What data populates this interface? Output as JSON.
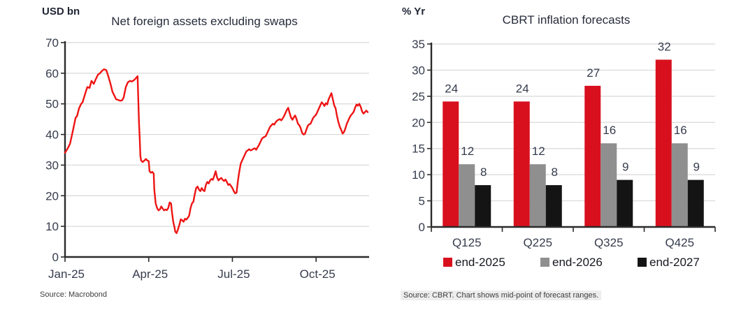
{
  "colors": {
    "line_red": "#ee1414",
    "bar_red": "#d8101e",
    "bar_gray": "#8f8f8f",
    "bar_black": "#141414",
    "grid": "#d8d8d8",
    "axis": "#2b2b2b",
    "text": "#363c4d"
  },
  "chart_data": [
    {
      "type": "line",
      "title": "Net foreign assets excluding swaps",
      "unit_label": "USD bn",
      "source": "Source: Macrobond",
      "ylabel": "",
      "ylim": [
        0,
        70
      ],
      "ytick_step": 10,
      "x_range_months": [
        0,
        10.9
      ],
      "x_ticks": [
        {
          "pos": 0,
          "label": "Jan-25"
        },
        {
          "pos": 3,
          "label": "Apr-25"
        },
        {
          "pos": 6,
          "label": "Jul-25"
        },
        {
          "pos": 9,
          "label": "Oct-25"
        }
      ],
      "grid": true,
      "series_name": "Net foreign assets excluding swaps (USD bn)",
      "points": [
        [
          0,
          34
        ],
        [
          0.1,
          35.5
        ],
        [
          0.18,
          37
        ],
        [
          0.3,
          42
        ],
        [
          0.38,
          45.5
        ],
        [
          0.43,
          46
        ],
        [
          0.5,
          48.5
        ],
        [
          0.58,
          50
        ],
        [
          0.63,
          50.5
        ],
        [
          0.73,
          53.5
        ],
        [
          0.8,
          55.5
        ],
        [
          0.88,
          55.2
        ],
        [
          0.95,
          57.5
        ],
        [
          1.03,
          56.5
        ],
        [
          1.1,
          58
        ],
        [
          1.18,
          59.5
        ],
        [
          1.25,
          60
        ],
        [
          1.33,
          60.8
        ],
        [
          1.4,
          61.3
        ],
        [
          1.48,
          61
        ],
        [
          1.55,
          59
        ],
        [
          1.63,
          56.5
        ],
        [
          1.7,
          54
        ],
        [
          1.78,
          52.5
        ],
        [
          1.83,
          51.5
        ],
        [
          1.9,
          51.3
        ],
        [
          1.98,
          51
        ],
        [
          2.05,
          51.2
        ],
        [
          2.1,
          52
        ],
        [
          2.18,
          55.5
        ],
        [
          2.25,
          57
        ],
        [
          2.33,
          57.5
        ],
        [
          2.4,
          57.3
        ],
        [
          2.48,
          57.8
        ],
        [
          2.55,
          58.5
        ],
        [
          2.6,
          59
        ],
        [
          2.63,
          50
        ],
        [
          2.65,
          44
        ],
        [
          2.68,
          38
        ],
        [
          2.7,
          33
        ],
        [
          2.73,
          31.5
        ],
        [
          2.78,
          31
        ],
        [
          2.85,
          31.5
        ],
        [
          2.9,
          32
        ],
        [
          2.95,
          31.5
        ],
        [
          3,
          31.3
        ],
        [
          3.03,
          28
        ],
        [
          3.08,
          27.5
        ],
        [
          3.13,
          27.8
        ],
        [
          3.18,
          27.2
        ],
        [
          3.2,
          22
        ],
        [
          3.25,
          17.5
        ],
        [
          3.3,
          16
        ],
        [
          3.35,
          15.2
        ],
        [
          3.4,
          15.5
        ],
        [
          3.45,
          16.5
        ],
        [
          3.5,
          15.8
        ],
        [
          3.55,
          15.2
        ],
        [
          3.6,
          15.5
        ],
        [
          3.65,
          15.3
        ],
        [
          3.7,
          16
        ],
        [
          3.75,
          17.8
        ],
        [
          3.8,
          17.5
        ],
        [
          3.83,
          15
        ],
        [
          3.88,
          11.5
        ],
        [
          3.93,
          9.5
        ],
        [
          3.95,
          8.3
        ],
        [
          4,
          7.8
        ],
        [
          4.05,
          9
        ],
        [
          4.1,
          10.5
        ],
        [
          4.15,
          12.3
        ],
        [
          4.2,
          12
        ],
        [
          4.25,
          11.5
        ],
        [
          4.3,
          12.5
        ],
        [
          4.35,
          12.2
        ],
        [
          4.4,
          12.8
        ],
        [
          4.45,
          13.5
        ],
        [
          4.5,
          16
        ],
        [
          4.55,
          17.5
        ],
        [
          4.6,
          18
        ],
        [
          4.65,
          20.5
        ],
        [
          4.7,
          22.5
        ],
        [
          4.75,
          23
        ],
        [
          4.8,
          22
        ],
        [
          4.85,
          21.5
        ],
        [
          4.9,
          22.5
        ],
        [
          4.95,
          21.8
        ],
        [
          5,
          21.5
        ],
        [
          5.05,
          23.5
        ],
        [
          5.1,
          24.5
        ],
        [
          5.15,
          24
        ],
        [
          5.2,
          25
        ],
        [
          5.25,
          25.5
        ],
        [
          5.3,
          25.2
        ],
        [
          5.35,
          26.5
        ],
        [
          5.4,
          28
        ],
        [
          5.45,
          26
        ],
        [
          5.5,
          25
        ],
        [
          5.55,
          25.5
        ],
        [
          5.6,
          25.8
        ],
        [
          5.65,
          25.2
        ],
        [
          5.7,
          24.8
        ],
        [
          5.75,
          25.3
        ],
        [
          5.8,
          24.5
        ],
        [
          5.85,
          23.5
        ],
        [
          5.9,
          23.8
        ],
        [
          5.95,
          23.2
        ],
        [
          6,
          22.5
        ],
        [
          6.05,
          21.5
        ],
        [
          6.1,
          20.8
        ],
        [
          6.15,
          21
        ],
        [
          6.2,
          25
        ],
        [
          6.25,
          28
        ],
        [
          6.3,
          30.5
        ],
        [
          6.35,
          31.5
        ],
        [
          6.4,
          32.5
        ],
        [
          6.45,
          33.5
        ],
        [
          6.5,
          34.5
        ],
        [
          6.55,
          34.8
        ],
        [
          6.6,
          35.2
        ],
        [
          6.65,
          34.8
        ],
        [
          6.7,
          35
        ],
        [
          6.75,
          35.3
        ],
        [
          6.8,
          35.5
        ],
        [
          6.85,
          35
        ],
        [
          6.9,
          35.8
        ],
        [
          6.95,
          36.5
        ],
        [
          7,
          37.5
        ],
        [
          7.05,
          38.5
        ],
        [
          7.1,
          39
        ],
        [
          7.15,
          39.2
        ],
        [
          7.2,
          39.5
        ],
        [
          7.25,
          40.5
        ],
        [
          7.3,
          41.5
        ],
        [
          7.35,
          42.5
        ],
        [
          7.4,
          43
        ],
        [
          7.45,
          43.5
        ],
        [
          7.5,
          43.2
        ],
        [
          7.55,
          44
        ],
        [
          7.6,
          44.5
        ],
        [
          7.65,
          44.8
        ],
        [
          7.7,
          45
        ],
        [
          7.75,
          44.6
        ],
        [
          7.8,
          45.2
        ],
        [
          7.85,
          46
        ],
        [
          7.9,
          47
        ],
        [
          7.95,
          48
        ],
        [
          8,
          48.7
        ],
        [
          8.05,
          47
        ],
        [
          8.1,
          45.5
        ],
        [
          8.15,
          44.8
        ],
        [
          8.2,
          45.6
        ],
        [
          8.25,
          46.2
        ],
        [
          8.3,
          45
        ],
        [
          8.35,
          43.5
        ],
        [
          8.4,
          43
        ],
        [
          8.45,
          42
        ],
        [
          8.5,
          40.5
        ],
        [
          8.55,
          40
        ],
        [
          8.6,
          40.2
        ],
        [
          8.65,
          41.5
        ],
        [
          8.7,
          42.8
        ],
        [
          8.75,
          43.3
        ],
        [
          8.8,
          43.5
        ],
        [
          8.85,
          44.5
        ],
        [
          8.9,
          45.5
        ],
        [
          8.95,
          46
        ],
        [
          9,
          46.5
        ],
        [
          9.05,
          47.5
        ],
        [
          9.1,
          48.5
        ],
        [
          9.15,
          49.5
        ],
        [
          9.2,
          50.5
        ],
        [
          9.25,
          50
        ],
        [
          9.3,
          49.3
        ],
        [
          9.35,
          50.2
        ],
        [
          9.4,
          49.8
        ],
        [
          9.45,
          51.5
        ],
        [
          9.5,
          52.5
        ],
        [
          9.55,
          53.5
        ],
        [
          9.6,
          51.5
        ],
        [
          9.65,
          49.5
        ],
        [
          9.7,
          48.5
        ],
        [
          9.75,
          46
        ],
        [
          9.8,
          44
        ],
        [
          9.85,
          42.5
        ],
        [
          9.9,
          41.5
        ],
        [
          9.95,
          40.3
        ],
        [
          10,
          40.8
        ],
        [
          10.05,
          42
        ],
        [
          10.1,
          43.5
        ],
        [
          10.15,
          44.5
        ],
        [
          10.2,
          45.5
        ],
        [
          10.25,
          46.3
        ],
        [
          10.3,
          46.8
        ],
        [
          10.35,
          47.5
        ],
        [
          10.4,
          48.8
        ],
        [
          10.45,
          49.8
        ],
        [
          10.5,
          49.4
        ],
        [
          10.55,
          50
        ],
        [
          10.6,
          49
        ],
        [
          10.65,
          47.5
        ],
        [
          10.7,
          46.8
        ],
        [
          10.75,
          47.3
        ],
        [
          10.8,
          47.8
        ],
        [
          10.85,
          47.3
        ]
      ]
    },
    {
      "type": "bar",
      "title": "CBRT inflation forecasts",
      "unit_label": "% Yr",
      "source": "Source: CBRT. Chart shows mid-point of forecast ranges.",
      "ylim": [
        0,
        35
      ],
      "ytick_step": 5,
      "grid": true,
      "legend_position": "bottom",
      "categories": [
        "Q125",
        "Q225",
        "Q325",
        "Q425"
      ],
      "series": [
        {
          "name": "end-2025",
          "color": "#d8101e",
          "values": [
            24,
            24,
            27,
            32
          ]
        },
        {
          "name": "end-2026",
          "color": "#8f8f8f",
          "values": [
            12,
            12,
            16,
            16
          ]
        },
        {
          "name": "end-2027",
          "color": "#141414",
          "values": [
            8,
            8,
            9,
            9
          ]
        }
      ]
    }
  ]
}
